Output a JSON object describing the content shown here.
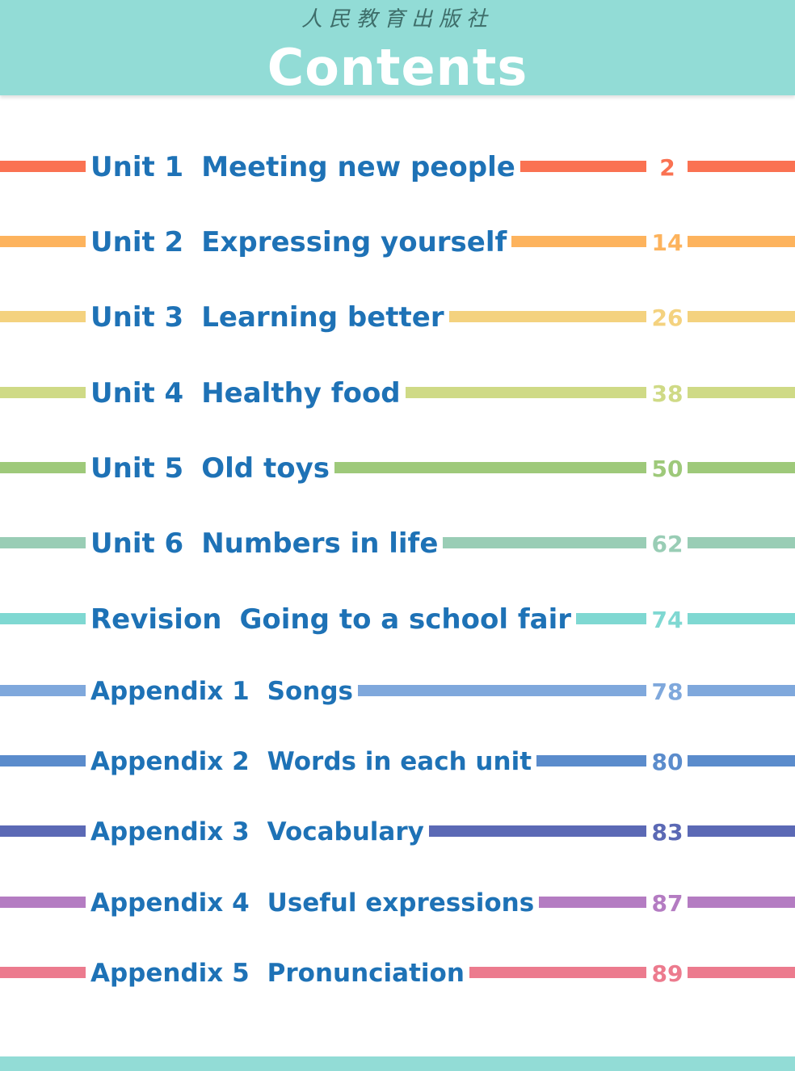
{
  "header": {
    "publisher": "人民教育出版社",
    "title": "Contents"
  },
  "toc": [
    {
      "num": "Unit 1",
      "title": "Meeting new people",
      "page": "2",
      "color": "#fa7252"
    },
    {
      "num": "Unit 2",
      "title": "Expressing yourself",
      "page": "14",
      "color": "#fdb35d"
    },
    {
      "num": "Unit 3",
      "title": "Learning better",
      "page": "26",
      "color": "#f4d27f"
    },
    {
      "num": "Unit 4",
      "title": "Healthy food",
      "page": "38",
      "color": "#cfda86"
    },
    {
      "num": "Unit 5",
      "title": "Old toys",
      "page": "50",
      "color": "#9ec97a"
    },
    {
      "num": "Unit 6",
      "title": "Numbers in life",
      "page": "62",
      "color": "#99cdb5"
    },
    {
      "num": "Revision",
      "title": "Going to a school fair",
      "page": "74",
      "color": "#7fd8d2"
    },
    {
      "num": "Appendix 1",
      "title": "Songs",
      "page": "78",
      "color": "#7fa8dc"
    },
    {
      "num": "Appendix 2",
      "title": "Words in each unit",
      "page": "80",
      "color": "#5b8ccc"
    },
    {
      "num": "Appendix 3",
      "title": "Vocabulary",
      "page": "83",
      "color": "#5b69b5"
    },
    {
      "num": "Appendix 4",
      "title": "Useful expressions",
      "page": "87",
      "color": "#b47cc2"
    },
    {
      "num": "Appendix 5",
      "title": "Pronunciation",
      "page": "89",
      "color": "#ec7b8e"
    }
  ]
}
